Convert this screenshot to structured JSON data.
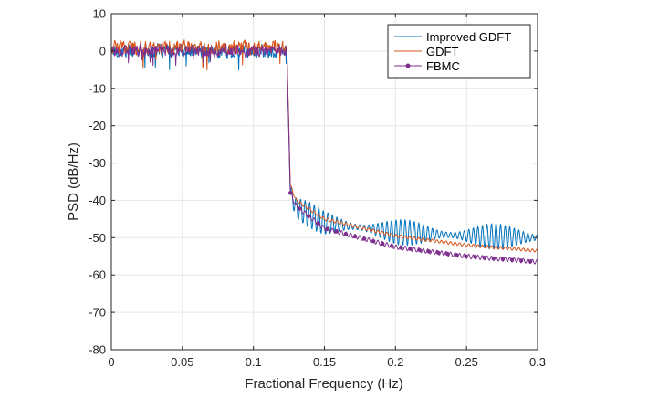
{
  "chart_data": {
    "type": "line",
    "title": "",
    "xlabel": "Fractional Frequency (Hz)",
    "ylabel": "PSD (dB/Hz)",
    "xlim": [
      0,
      0.3
    ],
    "ylim": [
      -80,
      10
    ],
    "xticks": [
      0,
      0.05,
      0.1,
      0.15,
      0.2,
      0.25,
      0.3
    ],
    "xtick_labels": [
      "0",
      "0.05",
      "0.1",
      "0.15",
      "0.2",
      "0.25",
      "0.3"
    ],
    "yticks": [
      10,
      0,
      -10,
      -20,
      -30,
      -40,
      -50,
      -60,
      -70,
      -80
    ],
    "ytick_labels": [
      "10",
      "0",
      "-10",
      "-20",
      "-30",
      "-40",
      "-50",
      "-60",
      "-70",
      "-80"
    ],
    "grid": true,
    "legend_position": "top-right",
    "series": [
      {
        "name": "Improved GDFT",
        "color": "#0072BD",
        "passband_level": 0,
        "passband_ripple": 2.5,
        "cutoff": 0.1235,
        "edge_value": -39,
        "stopband_points": [
          [
            0.126,
            -38
          ],
          [
            0.13,
            -42
          ],
          [
            0.15,
            -46
          ],
          [
            0.2,
            -48.5
          ],
          [
            0.25,
            -49.5
          ],
          [
            0.3,
            -50
          ]
        ],
        "stopband_ripple": 3.5
      },
      {
        "name": "GDFT",
        "color": "#D95319",
        "passband_level": 1,
        "passband_ripple": 2.5,
        "cutoff": 0.1235,
        "edge_value": -36,
        "stopband_points": [
          [
            0.126,
            -36
          ],
          [
            0.13,
            -40
          ],
          [
            0.15,
            -45
          ],
          [
            0.2,
            -49.5
          ],
          [
            0.25,
            -52
          ],
          [
            0.3,
            -53.5
          ]
        ],
        "stopband_ripple": 0.4
      },
      {
        "name": "FBMC",
        "color": "#7E2F8E",
        "passband_level": 0,
        "passband_ripple": 2.0,
        "cutoff": 0.1235,
        "edge_value": -38,
        "stopband_points": [
          [
            0.126,
            -38
          ],
          [
            0.13,
            -41.5
          ],
          [
            0.15,
            -47.5
          ],
          [
            0.2,
            -52.5
          ],
          [
            0.25,
            -55
          ],
          [
            0.3,
            -56.5
          ]
        ],
        "stopband_ripple": 0.6
      }
    ]
  }
}
